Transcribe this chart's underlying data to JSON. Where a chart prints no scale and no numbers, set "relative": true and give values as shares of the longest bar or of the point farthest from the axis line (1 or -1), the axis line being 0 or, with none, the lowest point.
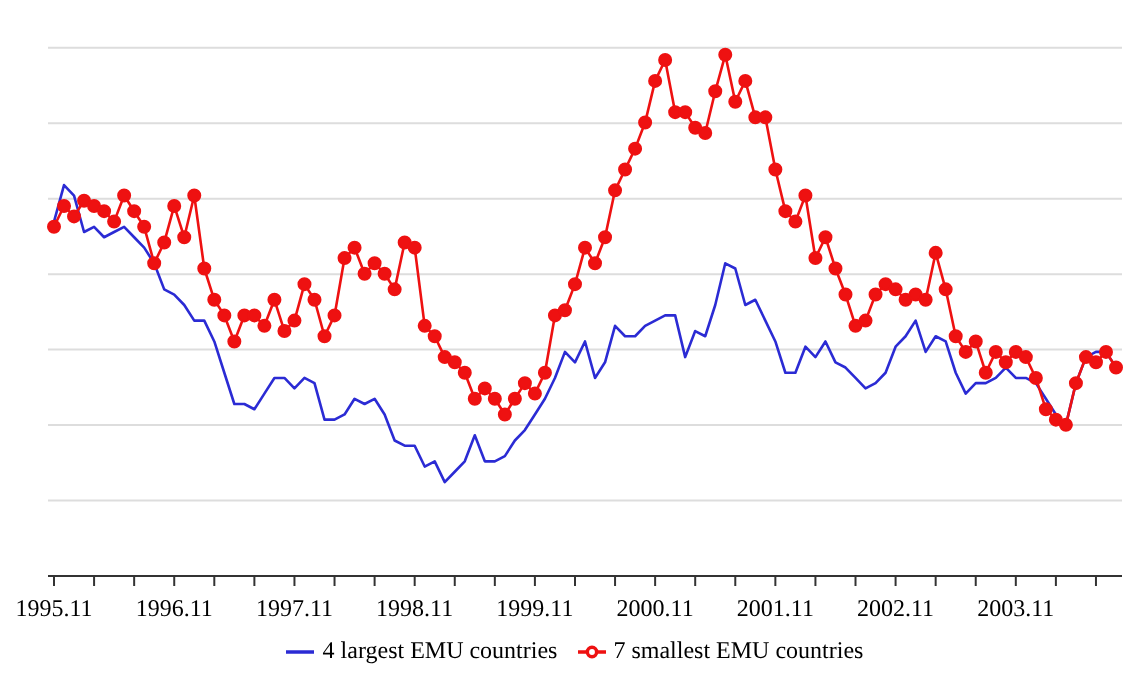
{
  "chart_data": {
    "type": "line",
    "relative": true,
    "grid": "y",
    "legend": "bottom",
    "categories": [
      "1995.11",
      null,
      null,
      null,
      null,
      null,
      null,
      null,
      null,
      null,
      null,
      null,
      "1996.11",
      null,
      null,
      null,
      null,
      null,
      null,
      null,
      null,
      null,
      null,
      null,
      "1997.11",
      null,
      null,
      null,
      null,
      null,
      null,
      null,
      null,
      null,
      null,
      null,
      "1998.11",
      null,
      null,
      null,
      null,
      null,
      null,
      null,
      null,
      null,
      null,
      null,
      "1999.11",
      null,
      null,
      null,
      null,
      null,
      null,
      null,
      null,
      null,
      null,
      null,
      "2000.11",
      null,
      null,
      null,
      null,
      null,
      null,
      null,
      null,
      null,
      null,
      null,
      "2001.11",
      null,
      null,
      null,
      null,
      null,
      null,
      null,
      null,
      null,
      null,
      null,
      "2002.11",
      null,
      null,
      null,
      null,
      null,
      null,
      null,
      null,
      null,
      null,
      null,
      "2003.11",
      null,
      null,
      null,
      null,
      null,
      null,
      null,
      null,
      null,
      null
    ],
    "series": [
      {
        "name": "4 largest EMU countries",
        "color": "#2b2bd4",
        "marker": "none",
        "values": [
          0.68,
          0.75,
          0.73,
          0.66,
          0.67,
          0.65,
          0.66,
          0.67,
          0.65,
          0.63,
          0.6,
          0.55,
          0.54,
          0.52,
          0.49,
          0.49,
          0.45,
          0.39,
          0.33,
          0.33,
          0.32,
          0.35,
          0.38,
          0.38,
          0.36,
          0.38,
          0.37,
          0.3,
          0.3,
          0.31,
          0.34,
          0.33,
          0.34,
          0.31,
          0.26,
          0.25,
          0.25,
          0.21,
          0.22,
          0.18,
          0.2,
          0.22,
          0.27,
          0.22,
          0.22,
          0.23,
          0.26,
          0.28,
          0.31,
          0.34,
          0.38,
          0.43,
          0.41,
          0.45,
          0.38,
          0.41,
          0.48,
          0.46,
          0.46,
          0.48,
          0.49,
          0.5,
          0.5,
          0.42,
          0.47,
          0.46,
          0.52,
          0.6,
          0.59,
          0.52,
          0.53,
          0.49,
          0.45,
          0.39,
          0.39,
          0.44,
          0.42,
          0.45,
          0.41,
          0.4,
          0.38,
          0.36,
          0.37,
          0.39,
          0.44,
          0.46,
          0.49,
          0.43,
          0.46,
          0.45,
          0.39,
          0.35,
          0.37,
          0.37,
          0.38,
          0.4,
          0.38,
          0.38,
          0.37,
          0.34,
          0.31,
          0.29,
          0.37,
          0.42,
          0.43,
          0.43,
          0.4
        ]
      },
      {
        "name": "7 smallest EMU countries",
        "color": "#ee1111",
        "marker": "circle",
        "values": [
          0.67,
          0.71,
          0.69,
          0.72,
          0.71,
          0.7,
          0.68,
          0.73,
          0.7,
          0.67,
          0.6,
          0.64,
          0.71,
          0.65,
          0.73,
          0.59,
          0.53,
          0.5,
          0.45,
          0.5,
          0.5,
          0.48,
          0.53,
          0.47,
          0.49,
          0.56,
          0.53,
          0.46,
          0.5,
          0.61,
          0.63,
          0.58,
          0.6,
          0.58,
          0.55,
          0.64,
          0.63,
          0.48,
          0.46,
          0.42,
          0.41,
          0.39,
          0.34,
          0.36,
          0.34,
          0.31,
          0.34,
          0.37,
          0.35,
          0.39,
          0.5,
          0.51,
          0.56,
          0.63,
          0.6,
          0.65,
          0.74,
          0.78,
          0.82,
          0.87,
          0.95,
          0.99,
          0.89,
          0.89,
          0.86,
          0.85,
          0.93,
          1,
          0.91,
          0.95,
          0.88,
          0.88,
          0.78,
          0.7,
          0.68,
          0.73,
          0.61,
          0.65,
          0.59,
          0.54,
          0.48,
          0.49,
          0.54,
          0.56,
          0.55,
          0.53,
          0.54,
          0.53,
          0.62,
          0.55,
          0.46,
          0.43,
          0.45,
          0.39,
          0.43,
          0.41,
          0.43,
          0.42,
          0.38,
          0.32,
          0.3,
          0.29,
          0.37,
          0.42,
          0.41,
          0.43,
          0.4
        ]
      }
    ]
  }
}
